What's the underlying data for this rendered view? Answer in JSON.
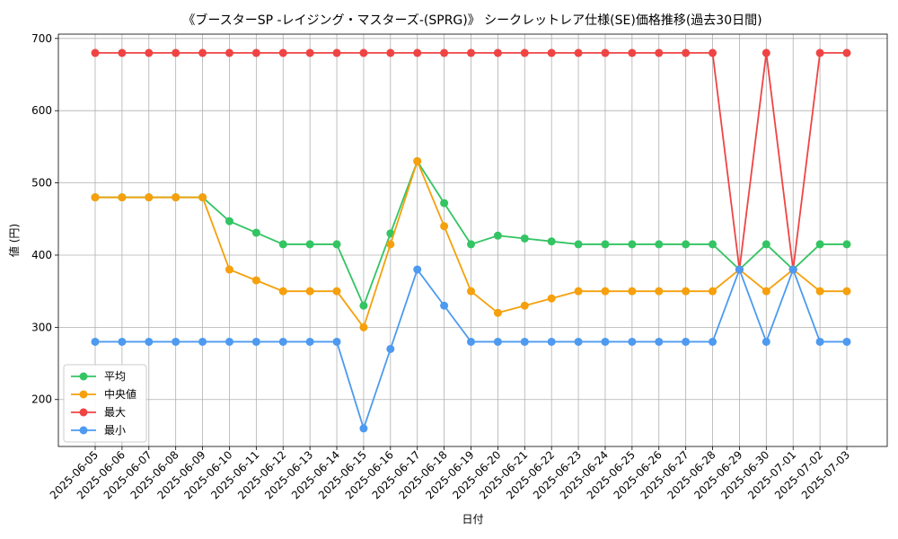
{
  "chart_data": {
    "type": "line",
    "title": "《ブースターSP -レイジング・マスターズ-(SPRG)》 シークレットレア仕様(SE)価格推移(過去30日間)",
    "xlabel": "日付",
    "ylabel": "値 (円)",
    "ylim": [
      135,
      706
    ],
    "yticks": [
      200,
      300,
      400,
      500,
      600,
      700
    ],
    "grid": true,
    "legend_position": "lower-left",
    "categories": [
      "2025-06-05",
      "2025-06-06",
      "2025-06-07",
      "2025-06-08",
      "2025-06-09",
      "2025-06-10",
      "2025-06-11",
      "2025-06-12",
      "2025-06-13",
      "2025-06-14",
      "2025-06-15",
      "2025-06-16",
      "2025-06-17",
      "2025-06-18",
      "2025-06-19",
      "2025-06-20",
      "2025-06-21",
      "2025-06-22",
      "2025-06-23",
      "2025-06-24",
      "2025-06-25",
      "2025-06-26",
      "2025-06-27",
      "2025-06-28",
      "2025-06-29",
      "2025-06-30",
      "2025-07-01",
      "2025-07-02",
      "2025-07-03"
    ],
    "series": [
      {
        "name": "平均",
        "color": "#33c463",
        "values": [
          480,
          480,
          480,
          480,
          480,
          447,
          431,
          415,
          415,
          415,
          330,
          430,
          530,
          472,
          415,
          427,
          423,
          419,
          415,
          415,
          415,
          415,
          415,
          415,
          380,
          415,
          380,
          415,
          415
        ]
      },
      {
        "name": "中央値",
        "color": "#f5a00c",
        "values": [
          480,
          480,
          480,
          480,
          480,
          380,
          365,
          350,
          350,
          350,
          300,
          415,
          530,
          440,
          350,
          320,
          330,
          340,
          350,
          350,
          350,
          350,
          350,
          350,
          380,
          350,
          380,
          350,
          350
        ]
      },
      {
        "name": "最大",
        "color": "#ef4444",
        "values": [
          680,
          680,
          680,
          680,
          680,
          680,
          680,
          680,
          680,
          680,
          680,
          680,
          680,
          680,
          680,
          680,
          680,
          680,
          680,
          680,
          680,
          680,
          680,
          680,
          380,
          680,
          380,
          680,
          680
        ]
      },
      {
        "name": "最小",
        "color": "#4d9af0",
        "values": [
          280,
          280,
          280,
          280,
          280,
          280,
          280,
          280,
          280,
          280,
          160,
          270,
          380,
          330,
          280,
          280,
          280,
          280,
          280,
          280,
          280,
          280,
          280,
          280,
          380,
          280,
          380,
          280,
          280
        ]
      }
    ]
  }
}
